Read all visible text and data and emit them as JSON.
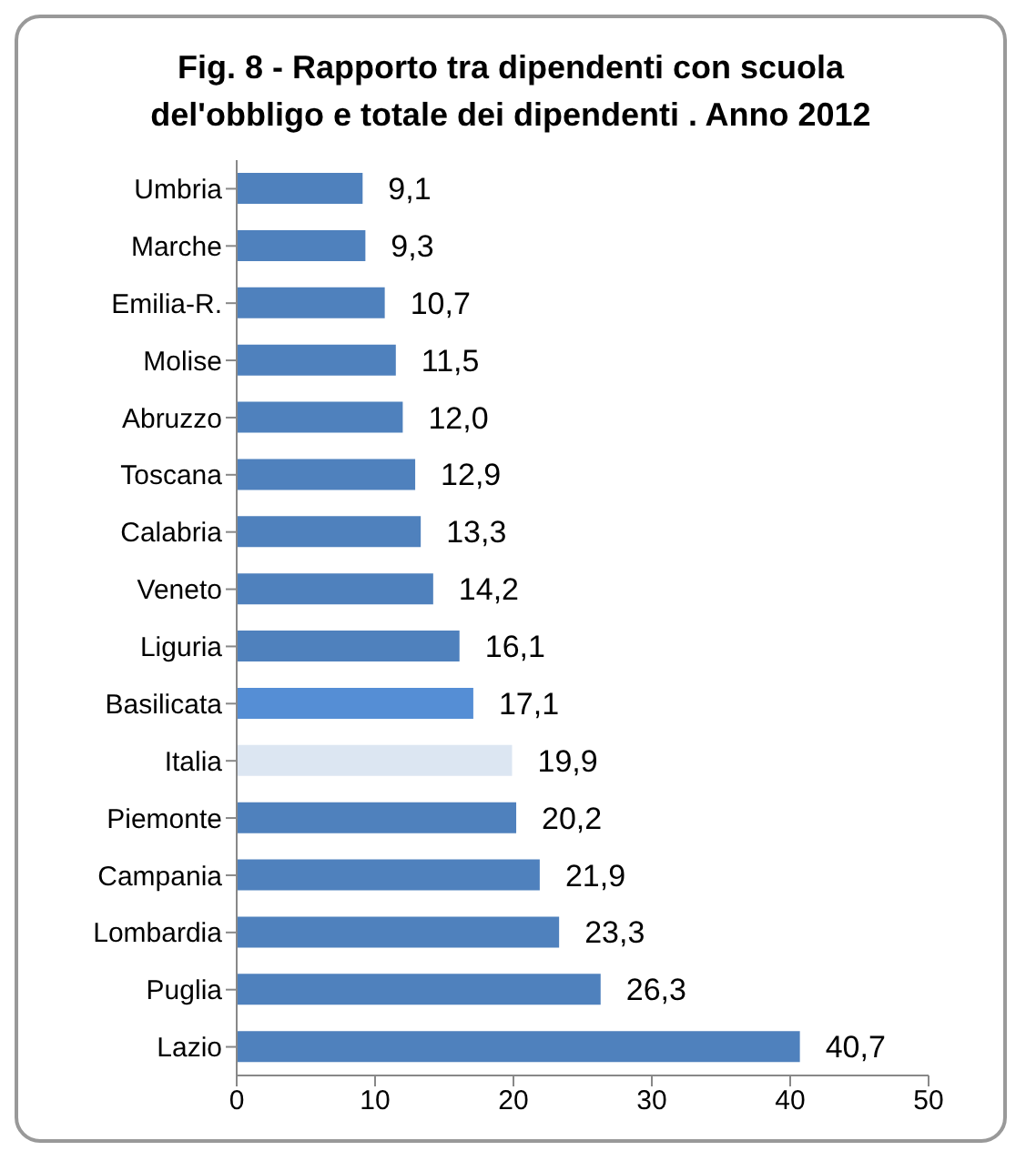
{
  "chart_data": {
    "type": "bar",
    "orientation": "horizontal",
    "title": "Fig. 8 - Rapporto tra dipendenti con scuola del'obbligo e totale dei dipendenti . Anno 2012",
    "categories": [
      "Umbria",
      "Marche",
      "Emilia-R.",
      "Molise",
      "Abruzzo",
      "Toscana",
      "Calabria",
      "Veneto",
      "Liguria",
      "Basilicata",
      "Italia",
      "Piemonte",
      "Campania",
      "Lombardia",
      "Puglia",
      "Lazio"
    ],
    "values": [
      9.1,
      9.3,
      10.7,
      11.5,
      12.0,
      12.9,
      13.3,
      14.2,
      16.1,
      17.1,
      19.9,
      20.2,
      21.9,
      23.3,
      26.3,
      40.7
    ],
    "value_labels": [
      "9,1",
      "9,3",
      "10,7",
      "11,5",
      "12,0",
      "12,9",
      "13,3",
      "14,2",
      "16,1",
      "17,1",
      "19,9",
      "20,2",
      "21,9",
      "23,3",
      "26,3",
      "40,7"
    ],
    "colors": [
      "#4f81bd",
      "#4f81bd",
      "#4f81bd",
      "#4f81bd",
      "#4f81bd",
      "#4f81bd",
      "#4f81bd",
      "#4f81bd",
      "#4f81bd",
      "#558ed5",
      "#dce6f2",
      "#4f81bd",
      "#4f81bd",
      "#4f81bd",
      "#4f81bd",
      "#4f81bd"
    ],
    "xlim": [
      0,
      50
    ],
    "xticks": [
      0,
      10,
      20,
      30,
      40,
      50
    ],
    "grid": false,
    "legend": false
  }
}
